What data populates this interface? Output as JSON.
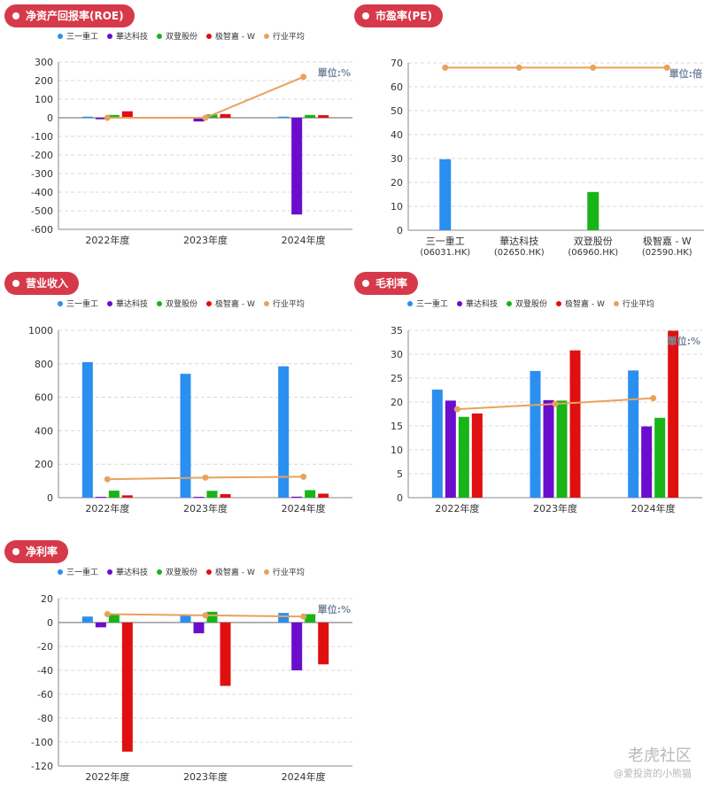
{
  "legend_labels": [
    "三一重工",
    "華达科技",
    "双登股份",
    "极智嘉 - W",
    "行业平均"
  ],
  "pe_legend_labels": [],
  "colors": {
    "s1": "#2b8ff0",
    "s2": "#6a0dcc",
    "s3": "#18b418",
    "s4": "#e01010",
    "avg": "#e8a25c",
    "badge": "#d63a4a"
  },
  "watermark": {
    "brand": "老虎社区",
    "user": "@爱投资的小熊猫"
  },
  "chart_data": [
    {
      "id": "roe",
      "type": "bar",
      "title": "净资产回报率(ROE)",
      "unit_label": "單位:%",
      "categories": [
        "2022年度",
        "2023年度",
        "2024年度"
      ],
      "ylim": [
        -600,
        300
      ],
      "yticks": [
        300,
        200,
        100,
        0,
        -100,
        -200,
        -300,
        -400,
        -500,
        -600
      ],
      "grid": true,
      "series": [
        {
          "name": "三一重工",
          "values": [
            6,
            5,
            6
          ]
        },
        {
          "name": "華达科技",
          "values": [
            -8,
            -20,
            -520
          ]
        },
        {
          "name": "双登股份",
          "values": [
            15,
            18,
            15
          ]
        },
        {
          "name": "极智嘉 - W",
          "values": [
            35,
            20,
            14
          ]
        }
      ],
      "line": {
        "name": "行业平均",
        "values": [
          0,
          0,
          220
        ]
      }
    },
    {
      "id": "pe",
      "type": "bar",
      "title": "市盈率(PE)",
      "unit_label": "單位:倍",
      "categories": [
        "三一重工\n(06031.HK)",
        "華达科技\n(02650.HK)",
        "双登股份\n(06960.HK)",
        "极智嘉 - W\n(02590.HK)"
      ],
      "ylim": [
        0,
        70
      ],
      "yticks": [
        70,
        60,
        50,
        40,
        30,
        20,
        10,
        0
      ],
      "grid": true,
      "bars": [
        {
          "value": 29.7,
          "color_key": "s1"
        },
        {
          "value": null,
          "color_key": "s2"
        },
        {
          "value": 16,
          "color_key": "s3"
        },
        {
          "value": null,
          "color_key": "s4"
        }
      ],
      "line": {
        "name": "行业平均",
        "values": [
          68,
          68,
          68,
          68
        ]
      }
    },
    {
      "id": "revenue",
      "type": "bar",
      "title": "营业收入",
      "unit_label": "",
      "categories": [
        "2022年度",
        "2023年度",
        "2024年度"
      ],
      "ylim": [
        0,
        1000
      ],
      "yticks": [
        1000,
        800,
        600,
        400,
        200,
        0
      ],
      "grid": true,
      "series": [
        {
          "name": "三一重工",
          "values": [
            810,
            740,
            785
          ]
        },
        {
          "name": "華达科技",
          "values": [
            5,
            5,
            6
          ]
        },
        {
          "name": "双登股份",
          "values": [
            42,
            41,
            45
          ]
        },
        {
          "name": "极智嘉 - W",
          "values": [
            14,
            21,
            24
          ]
        }
      ],
      "line": {
        "name": "行业平均",
        "values": [
          110,
          120,
          125
        ]
      }
    },
    {
      "id": "gross",
      "type": "bar",
      "title": "毛利率",
      "unit_label": "單位:%",
      "categories": [
        "2022年度",
        "2023年度",
        "2024年度"
      ],
      "ylim": [
        0,
        35
      ],
      "yticks": [
        35,
        30,
        25,
        20,
        15,
        10,
        5,
        0
      ],
      "grid": true,
      "series": [
        {
          "name": "三一重工",
          "values": [
            22.6,
            26.5,
            26.6
          ]
        },
        {
          "name": "華达科技",
          "values": [
            20.3,
            20.4,
            14.9
          ]
        },
        {
          "name": "双登股份",
          "values": [
            16.9,
            20.3,
            16.7
          ]
        },
        {
          "name": "极智嘉 - W",
          "values": [
            17.6,
            30.8,
            34.9
          ]
        }
      ],
      "line": {
        "name": "行业平均",
        "values": [
          18.5,
          19.6,
          20.8
        ]
      }
    },
    {
      "id": "net",
      "type": "bar",
      "title": "净利率",
      "unit_label": "單位:%",
      "categories": [
        "2022年度",
        "2023年度",
        "2024年度"
      ],
      "ylim": [
        -120,
        20
      ],
      "yticks": [
        20,
        0,
        -20,
        -40,
        -60,
        -80,
        -100,
        -120
      ],
      "grid": true,
      "series": [
        {
          "name": "三一重工",
          "values": [
            5,
            6,
            8
          ]
        },
        {
          "name": "華达科技",
          "values": [
            -4,
            -9,
            -40
          ]
        },
        {
          "name": "双登股份",
          "values": [
            7,
            9,
            7
          ]
        },
        {
          "name": "极智嘉 - W",
          "values": [
            -108,
            -53,
            -35
          ]
        }
      ],
      "line": {
        "name": "行业平均",
        "values": [
          7,
          6,
          5
        ]
      }
    }
  ]
}
